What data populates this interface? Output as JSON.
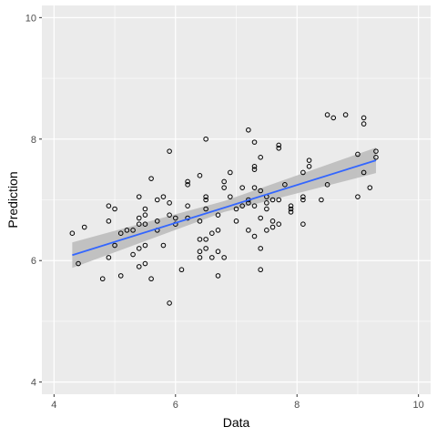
{
  "chart_data": {
    "type": "scatter",
    "title": "",
    "xlabel": "Data",
    "ylabel": "Prediction",
    "xlim": [
      3.8,
      10.2
    ],
    "ylim": [
      3.8,
      10.2
    ],
    "x_ticks": [
      "4",
      "6",
      "8",
      "10"
    ],
    "y_ticks": [
      "4",
      "6",
      "8",
      "10"
    ],
    "grid": true,
    "legend": "none",
    "colors": {
      "panel_background": "#ebebeb",
      "grid": "#ffffff",
      "points": "#000000",
      "trend_line": "#3366ff",
      "confidence_band": "#bdbdbd"
    },
    "points": [
      [
        4.3,
        6.45
      ],
      [
        4.4,
        5.95
      ],
      [
        4.5,
        6.55
      ],
      [
        4.8,
        5.7
      ],
      [
        4.9,
        6.05
      ],
      [
        4.9,
        6.65
      ],
      [
        4.9,
        6.9
      ],
      [
        5.0,
        6.85
      ],
      [
        5.0,
        6.25
      ],
      [
        5.1,
        5.75
      ],
      [
        5.1,
        6.45
      ],
      [
        5.2,
        6.5
      ],
      [
        5.3,
        6.5
      ],
      [
        5.3,
        6.1
      ],
      [
        5.4,
        6.6
      ],
      [
        5.4,
        6.7
      ],
      [
        5.4,
        6.2
      ],
      [
        5.4,
        7.05
      ],
      [
        5.4,
        5.9
      ],
      [
        5.5,
        6.85
      ],
      [
        5.5,
        6.75
      ],
      [
        5.5,
        6.6
      ],
      [
        5.5,
        6.25
      ],
      [
        5.5,
        5.95
      ],
      [
        5.6,
        5.7
      ],
      [
        5.6,
        7.35
      ],
      [
        5.7,
        7.0
      ],
      [
        5.7,
        6.5
      ],
      [
        5.7,
        6.65
      ],
      [
        5.8,
        7.05
      ],
      [
        5.8,
        6.25
      ],
      [
        5.9,
        7.8
      ],
      [
        5.9,
        6.95
      ],
      [
        5.9,
        6.75
      ],
      [
        5.9,
        5.3
      ],
      [
        6.0,
        6.7
      ],
      [
        6.0,
        6.6
      ],
      [
        6.1,
        5.85
      ],
      [
        6.2,
        7.3
      ],
      [
        6.2,
        7.25
      ],
      [
        6.2,
        6.9
      ],
      [
        6.2,
        6.7
      ],
      [
        6.4,
        7.4
      ],
      [
        6.4,
        6.35
      ],
      [
        6.4,
        6.15
      ],
      [
        6.4,
        6.05
      ],
      [
        6.4,
        6.65
      ],
      [
        6.5,
        8.0
      ],
      [
        6.5,
        7.05
      ],
      [
        6.5,
        7.0
      ],
      [
        6.5,
        6.85
      ],
      [
        6.5,
        6.35
      ],
      [
        6.5,
        6.2
      ],
      [
        6.6,
        6.45
      ],
      [
        6.6,
        6.05
      ],
      [
        6.7,
        6.75
      ],
      [
        6.7,
        6.5
      ],
      [
        6.7,
        5.75
      ],
      [
        6.7,
        6.15
      ],
      [
        6.8,
        7.3
      ],
      [
        6.8,
        7.2
      ],
      [
        6.8,
        6.05
      ],
      [
        6.9,
        7.05
      ],
      [
        6.9,
        7.45
      ],
      [
        7.0,
        6.65
      ],
      [
        7.0,
        6.85
      ],
      [
        7.1,
        7.2
      ],
      [
        7.1,
        6.9
      ],
      [
        7.2,
        8.15
      ],
      [
        7.2,
        7.0
      ],
      [
        7.2,
        6.95
      ],
      [
        7.2,
        6.5
      ],
      [
        7.3,
        7.95
      ],
      [
        7.3,
        7.55
      ],
      [
        7.3,
        7.5
      ],
      [
        7.3,
        7.2
      ],
      [
        7.3,
        6.4
      ],
      [
        7.3,
        6.9
      ],
      [
        7.4,
        7.7
      ],
      [
        7.4,
        7.15
      ],
      [
        7.4,
        6.7
      ],
      [
        7.4,
        6.2
      ],
      [
        7.4,
        5.85
      ],
      [
        7.5,
        7.05
      ],
      [
        7.5,
        6.95
      ],
      [
        7.5,
        6.85
      ],
      [
        7.5,
        6.5
      ],
      [
        7.6,
        7.0
      ],
      [
        7.6,
        6.65
      ],
      [
        7.6,
        6.55
      ],
      [
        7.7,
        7.9
      ],
      [
        7.7,
        7.85
      ],
      [
        7.7,
        7.0
      ],
      [
        7.7,
        6.6
      ],
      [
        7.8,
        7.25
      ],
      [
        7.9,
        6.9
      ],
      [
        7.9,
        6.85
      ],
      [
        7.9,
        6.8
      ],
      [
        8.1,
        7.45
      ],
      [
        8.1,
        7.05
      ],
      [
        8.1,
        7.0
      ],
      [
        8.1,
        6.6
      ],
      [
        8.2,
        7.65
      ],
      [
        8.2,
        7.55
      ],
      [
        8.4,
        7.0
      ],
      [
        8.5,
        8.4
      ],
      [
        8.5,
        7.25
      ],
      [
        8.6,
        8.35
      ],
      [
        8.8,
        8.4
      ],
      [
        9.0,
        7.75
      ],
      [
        9.0,
        7.05
      ],
      [
        9.1,
        8.35
      ],
      [
        9.1,
        8.25
      ],
      [
        9.1,
        7.45
      ],
      [
        9.2,
        7.2
      ],
      [
        9.3,
        7.8
      ],
      [
        9.3,
        7.7
      ]
    ],
    "trend_line": {
      "x": [
        4.3,
        9.3
      ],
      "y": [
        6.09,
        7.65
      ]
    },
    "confidence_band": {
      "x": [
        4.3,
        6.8,
        9.3
      ],
      "lower": [
        5.88,
        6.8,
        7.44
      ],
      "upper": [
        6.3,
        6.98,
        7.86
      ]
    }
  }
}
